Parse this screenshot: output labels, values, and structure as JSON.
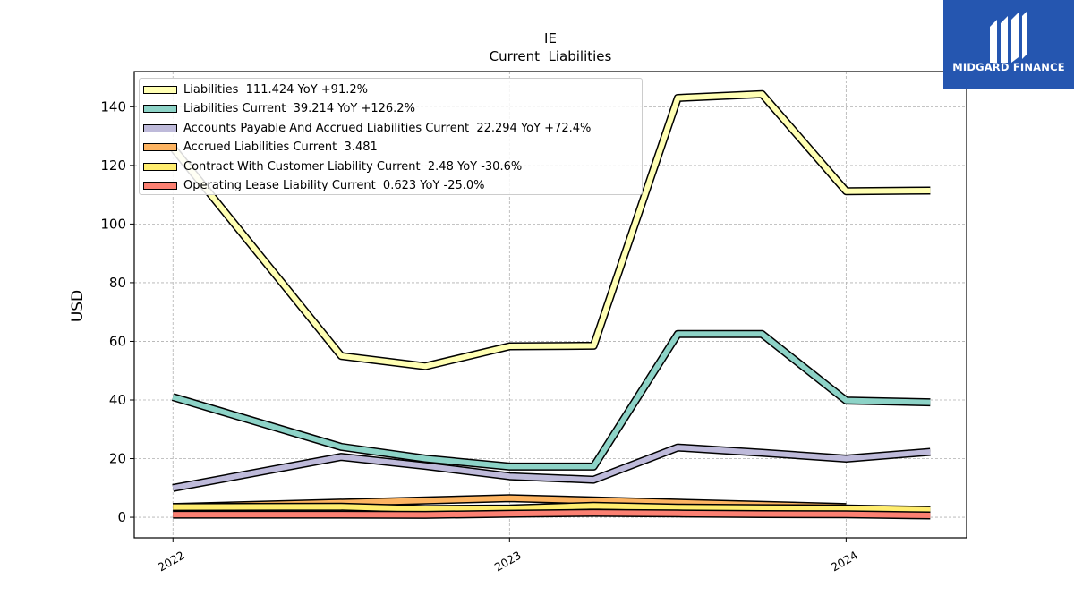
{
  "chart_data": {
    "type": "line",
    "title": "IE",
    "subtitle": "Current  Liabilities",
    "ylabel": "USD",
    "xlabel": "",
    "ylim": [
      -7,
      152
    ],
    "yticks": [
      0,
      20,
      40,
      60,
      80,
      100,
      120,
      140
    ],
    "xticks": [
      {
        "label": "2022",
        "t": 2022.0
      },
      {
        "label": "2023",
        "t": 2023.0
      },
      {
        "label": "2024",
        "t": 2024.0
      }
    ],
    "xlim": [
      2021.885,
      2024.358
    ],
    "grid": true,
    "legend_position": "top-left",
    "series": [
      {
        "name": "Liabilities  111.424 YoY +91.2%",
        "color": "#ffffb3",
        "x": [
          2022.0,
          2022.5,
          2022.75,
          2023.0,
          2023.25,
          2023.5,
          2023.75,
          2024.0,
          2024.25
        ],
        "values": [
          126,
          55,
          51.5,
          58.3,
          58.5,
          143,
          144.3,
          111.2,
          111.4
        ]
      },
      {
        "name": "Liabilities Current  39.214 YoY +126.2%",
        "color": "#8dd3c7",
        "x": [
          2022.0,
          2022.5,
          2022.75,
          2023.0,
          2023.25,
          2023.5,
          2023.75,
          2024.0,
          2024.25
        ],
        "values": [
          41,
          24,
          20,
          17.3,
          17.3,
          62.5,
          62.5,
          39.8,
          39.2
        ]
      },
      {
        "name": "Accounts Payable And Accrued Liabilities Current  22.294 YoY +72.4%",
        "color": "#bebada",
        "x": [
          2022.0,
          2022.5,
          2022.75,
          2023.0,
          2023.25,
          2023.5,
          2023.75,
          2024.0,
          2024.25
        ],
        "values": [
          10,
          20.6,
          17.5,
          14,
          12.8,
          23.8,
          22,
          20,
          22.3
        ]
      },
      {
        "name": "Accrued Liabilities Current  3.481",
        "color": "#fdb462",
        "x": [
          2022.0,
          2023.0,
          2024.0
        ],
        "values": [
          3.5,
          6.5,
          3.5
        ]
      },
      {
        "name": "Contract With Customer Liability Current  2.48 YoY -30.6%",
        "color": "#ffed6f",
        "x": [
          2022.0,
          2022.5,
          2022.75,
          2023.0,
          2023.25,
          2023.5,
          2023.75,
          2024.0,
          2024.25
        ],
        "values": [
          3.5,
          3.6,
          2.8,
          3.0,
          3.9,
          3.3,
          3.1,
          3.0,
          2.48
        ]
      },
      {
        "name": "Operating Lease Liability Current  0.623 YoY -25.0%",
        "color": "#fb8072",
        "x": [
          2022.0,
          2022.5,
          2022.75,
          2023.0,
          2023.25,
          2023.5,
          2023.75,
          2024.0,
          2024.25
        ],
        "values": [
          0.9,
          0.9,
          0.8,
          1.2,
          1.5,
          1.3,
          1.1,
          1.0,
          0.62
        ]
      }
    ]
  },
  "logo": {
    "text": "MIDGARD FINANCE",
    "bg_color": "#2556b0"
  }
}
